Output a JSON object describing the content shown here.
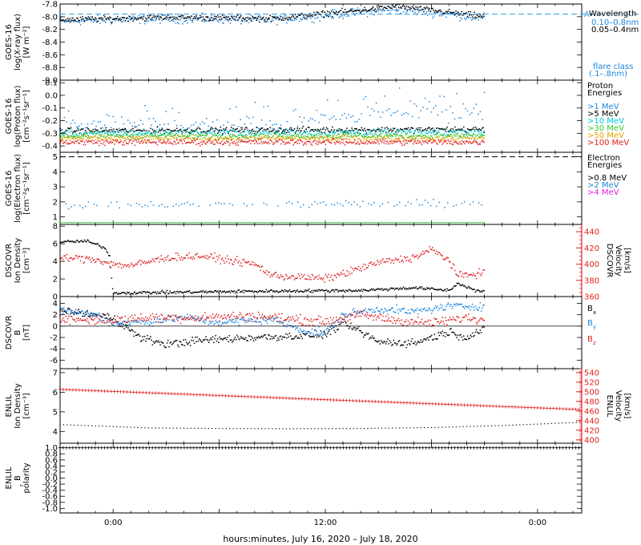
{
  "colors": {
    "black": "#000000",
    "blue": "#1a86e0",
    "cyan": "#00c8d6",
    "green": "#33cc33",
    "orange": "#e8a000",
    "red": "#e02020",
    "magenta": "#e020e0",
    "dash": "#3399dd"
  },
  "xaxis": {
    "label": "hours:minutes, July 16, 2020 – July 18, 2020",
    "range_hours": [
      -3.0,
      26.5
    ],
    "ticks": [
      {
        "h": 0,
        "label": "0:00"
      },
      {
        "h": 12,
        "label": "12:00"
      },
      {
        "h": 24,
        "label": "0:00"
      }
    ]
  },
  "chart_data": [
    {
      "type": "scatter",
      "id": "xray",
      "ylabel": [
        "GOES-16",
        "log(X-ray flux)",
        "[W m⁻²]"
      ],
      "ylim": [
        -9.0,
        -7.8
      ],
      "yticks": [
        -9.0,
        -8.8,
        -8.6,
        -8.4,
        -8.2,
        -8.0,
        -7.8
      ],
      "ytick_labels": [
        "-9.0",
        "-8.8",
        "-8.6",
        "-8.4",
        "-8.2",
        "-8.0",
        "-7.8"
      ],
      "legend_title": "Wavelength",
      "flare_class_label": "flare class",
      "flare_class_range": "(.1–.8nm)",
      "flare_marker": {
        "label": "A",
        "value": -7.96
      },
      "series": [
        {
          "name": "0.10–0.8nm",
          "color_key": "blue",
          "noise": 0.06,
          "trend": [
            [
              -3,
              -8.07
            ],
            [
              3,
              -8.03
            ],
            [
              9,
              -8.05
            ],
            [
              14,
              -7.93
            ],
            [
              16,
              -7.88
            ],
            [
              18,
              -7.93
            ],
            [
              21,
              -8.02
            ]
          ]
        },
        {
          "name": "0.05–0.4nm",
          "color_key": "black",
          "noise": 0.04,
          "trend": [
            [
              -3,
              -8.05
            ],
            [
              3,
              -8.01
            ],
            [
              9,
              -8.03
            ],
            [
              14,
              -7.9
            ],
            [
              16,
              -7.84
            ],
            [
              18,
              -7.9
            ],
            [
              21,
              -8.0
            ]
          ]
        }
      ]
    },
    {
      "type": "scatter",
      "id": "proton",
      "ylabel": [
        "GOES-16",
        "log(Proton flux)",
        "[cm⁻²s⁻¹sr⁻¹]"
      ],
      "ylim": [
        -0.45,
        0.12
      ],
      "yticks": [
        -0.4,
        -0.3,
        -0.2,
        -0.1,
        0.0,
        0.1
      ],
      "ytick_labels": [
        "-0.4",
        "-0.3",
        "-0.2",
        "-0.1",
        "0.0",
        "0.1"
      ],
      "legend_title": [
        "Proton",
        "Energies"
      ],
      "series": [
        {
          "name": ">1 MeV",
          "color_key": "blue",
          "noise": 0.06,
          "trend": [
            [
              -3,
              -0.24
            ],
            [
              10,
              -0.22
            ],
            [
              15,
              -0.12
            ],
            [
              21,
              -0.14
            ]
          ]
        },
        {
          "name": ">5 MeV",
          "color_key": "black",
          "noise": 0.02,
          "trend": [
            [
              -3,
              -0.28
            ],
            [
              21,
              -0.27
            ]
          ]
        },
        {
          "name": ">10 MeV",
          "color_key": "cyan",
          "noise": 0.025,
          "trend": [
            [
              -3,
              -0.3
            ],
            [
              21,
              -0.29
            ]
          ]
        },
        {
          "name": ">30 MeV",
          "color_key": "green",
          "noise": 0.02,
          "trend": [
            [
              -3,
              -0.32
            ],
            [
              21,
              -0.32
            ]
          ]
        },
        {
          "name": ">50 MeV",
          "color_key": "orange",
          "noise": 0.02,
          "trend": [
            [
              -3,
              -0.34
            ],
            [
              21,
              -0.34
            ]
          ]
        },
        {
          "name": ">100 MeV",
          "color_key": "red",
          "noise": 0.02,
          "trend": [
            [
              -3,
              -0.37
            ],
            [
              21,
              -0.37
            ]
          ]
        }
      ]
    },
    {
      "type": "scatter",
      "id": "electron",
      "ylabel": [
        "GOES-16",
        "log(Electron flux)",
        "[cm⁻²s⁻¹sr⁻¹]"
      ],
      "ylim": [
        0.5,
        5.3
      ],
      "yticks": [
        1,
        2,
        3,
        4,
        5
      ],
      "ytick_labels": [
        "1",
        "2",
        "3",
        "4",
        "5"
      ],
      "legend_title": [
        "Electron",
        "Energies"
      ],
      "threshold": 5.0,
      "series": [
        {
          "name": ">0.8 MeV",
          "color_key": "black",
          "noise": 0,
          "trend": []
        },
        {
          "name": ">2 MeV",
          "color_key": "blue",
          "noise": 0.2,
          "trend": [
            [
              -3,
              1.8
            ],
            [
              21,
              1.9
            ]
          ]
        },
        {
          "name": ">4 MeV",
          "color_key": "magenta",
          "noise": 0,
          "trend": []
        }
      ],
      "baseline": {
        "value": 0.62,
        "color_key": "green"
      }
    },
    {
      "type": "scatter",
      "id": "dscovr_plasma",
      "ylabel": [
        "DSCOVR",
        "Ion Density",
        "[cm⁻³]"
      ],
      "ylim": [
        0,
        8.2
      ],
      "yticks": [
        0,
        2,
        4,
        6,
        8
      ],
      "ytick_labels": [
        "0",
        "2",
        "4",
        "6",
        "8"
      ],
      "y2label": [
        "DSCOVR",
        "Velocity",
        "[km/s]"
      ],
      "y2lim": [
        360,
        449
      ],
      "y2ticks": [
        360,
        380,
        400,
        420,
        440
      ],
      "y2tick_labels": [
        "360",
        "380",
        "400",
        "420",
        "440"
      ],
      "series": [
        {
          "name": "Ion Density",
          "color_key": "black",
          "axis": "left",
          "noise": 0.15,
          "trend": [
            [
              -3,
              6.2
            ],
            [
              -1.5,
              6.3
            ],
            [
              -0.5,
              5.6
            ],
            [
              -0.2,
              4.6
            ],
            [
              0,
              0.4
            ],
            [
              8,
              0.6
            ],
            [
              14,
              0.7
            ],
            [
              17,
              1.0
            ],
            [
              19,
              0.7
            ],
            [
              19.5,
              1.5
            ],
            [
              20.5,
              0.7
            ],
            [
              21,
              0.5
            ]
          ]
        },
        {
          "name": "Velocity",
          "color_key": "red",
          "axis": "right",
          "noise": 4,
          "trend": [
            [
              -3,
              408
            ],
            [
              -1,
              406
            ],
            [
              0,
              400
            ],
            [
              1,
              398
            ],
            [
              3,
              408
            ],
            [
              5,
              410
            ],
            [
              8,
              400
            ],
            [
              9,
              386
            ],
            [
              12,
              382
            ],
            [
              13,
              388
            ],
            [
              15,
              402
            ],
            [
              17,
              408
            ],
            [
              18,
              418
            ],
            [
              19,
              405
            ],
            [
              19.5,
              385
            ],
            [
              21,
              390
            ]
          ]
        }
      ]
    },
    {
      "type": "scatter",
      "id": "dscovr_mag",
      "ylabel": [
        "DSCOVR",
        "B",
        "[nT]"
      ],
      "ylim": [
        -7.5,
        5.2
      ],
      "yticks": [
        -6,
        -4,
        -2,
        0,
        2,
        4
      ],
      "ytick_labels": [
        "-6",
        "-4",
        "-2",
        "0",
        "2",
        "4"
      ],
      "zero_line": 0,
      "series": [
        {
          "name": "Bx",
          "label_main": "B",
          "label_sub": "x",
          "color_key": "black",
          "noise": 0.6,
          "trend": [
            [
              -3,
              2.8
            ],
            [
              0,
              1.5
            ],
            [
              1.5,
              -2.0
            ],
            [
              3,
              -3.2
            ],
            [
              5,
              -2.5
            ],
            [
              8,
              -2.0
            ],
            [
              10,
              -1.8
            ],
            [
              12,
              -1.5
            ],
            [
              13,
              0.5
            ],
            [
              14,
              -1.0
            ],
            [
              15,
              -2.8
            ],
            [
              17,
              -3.0
            ],
            [
              18,
              -2.0
            ],
            [
              19,
              -1.0
            ],
            [
              20,
              -2.0
            ],
            [
              21,
              -0.5
            ]
          ]
        },
        {
          "name": "By",
          "label_main": "B",
          "label_sub": "y",
          "color_key": "blue",
          "noise": 0.6,
          "trend": [
            [
              -3,
              2.8
            ],
            [
              -1,
              2.0
            ],
            [
              0,
              0.5
            ],
            [
              2,
              0.8
            ],
            [
              4,
              1.5
            ],
            [
              6,
              0.6
            ],
            [
              9,
              1.2
            ],
            [
              11,
              -1.0
            ],
            [
              12,
              -1.2
            ],
            [
              13,
              2.0
            ],
            [
              15,
              3.0
            ],
            [
              17,
              2.5
            ],
            [
              19,
              3.5
            ],
            [
              21,
              3.5
            ]
          ]
        },
        {
          "name": "Bz",
          "label_main": "B",
          "label_sub": "z",
          "color_key": "red",
          "noise": 0.7,
          "trend": [
            [
              -3,
              1.2
            ],
            [
              0,
              1.0
            ],
            [
              2,
              1.5
            ],
            [
              5,
              1.5
            ],
            [
              8,
              1.8
            ],
            [
              10,
              1.2
            ],
            [
              12,
              0.8
            ],
            [
              14,
              2.0
            ],
            [
              16,
              1.0
            ],
            [
              18,
              0.5
            ],
            [
              20,
              1.5
            ],
            [
              21,
              1.0
            ]
          ]
        }
      ]
    },
    {
      "type": "line",
      "id": "enlil_plasma",
      "ylabel": [
        "ENLIL",
        "Ion Density",
        "[cm⁻³]"
      ],
      "ylim": [
        3.4,
        7.2
      ],
      "yticks": [
        4,
        5,
        6,
        7
      ],
      "ytick_labels": [
        "4",
        "5",
        "6",
        "7"
      ],
      "y2label": [
        "ENLIL",
        "Velocity",
        "[km/s]"
      ],
      "y2lim": [
        393,
        548
      ],
      "y2ticks": [
        400,
        420,
        440,
        460,
        480,
        500,
        520,
        540
      ],
      "y2tick_labels": [
        "400",
        "420",
        "440",
        "460",
        "480",
        "500",
        "520",
        "540"
      ],
      "series": [
        {
          "name": "Ion Density",
          "color_key": "black",
          "axis": "left",
          "marker": "dot",
          "x": [
            -3,
            2,
            6,
            10,
            14,
            18,
            22,
            26.5
          ],
          "y": [
            4.35,
            4.18,
            4.15,
            4.14,
            4.15,
            4.2,
            4.3,
            4.47
          ]
        },
        {
          "name": "Velocity",
          "color_key": "red",
          "axis": "right",
          "marker": "plus",
          "x": [
            -3,
            26.5
          ],
          "y": [
            505,
            463
          ]
        }
      ]
    },
    {
      "type": "line",
      "id": "enlil_polarity",
      "ylabel": [
        "ENLIL",
        "B",
        "polarity"
      ],
      "ylabel_sub": "r",
      "ylim": [
        -1.15,
        1.15
      ],
      "yticks": [
        -1.0,
        -0.8,
        -0.6,
        -0.4,
        -0.2,
        0.0,
        0.2,
        0.4,
        0.6,
        0.8,
        1.0
      ],
      "ytick_labels": [
        "-1.0",
        "-0.8",
        "-0.6",
        "-0.4",
        "-0.2",
        "0.0",
        "0.2",
        "0.4",
        "0.6",
        "0.8",
        "1.0"
      ],
      "series": [
        {
          "name": "polarity",
          "color_key": "black",
          "marker": "plus",
          "x": [
            -3,
            26.5
          ],
          "y": [
            1.0,
            1.0
          ]
        }
      ]
    }
  ]
}
